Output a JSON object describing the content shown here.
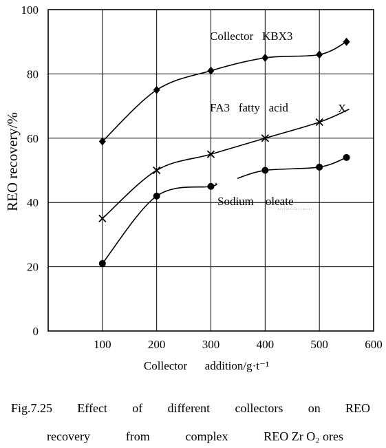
{
  "chart_data": {
    "type": "line",
    "xlabel": "Collector      addition/g·t⁻¹",
    "ylabel": "REO recovery/%",
    "xlim": [
      0,
      600
    ],
    "ylim": [
      0,
      100
    ],
    "x_ticks": [
      "100",
      "200",
      "300",
      "400",
      "500",
      "600"
    ],
    "y_ticks": [
      "0",
      "20",
      "40",
      "60",
      "80",
      "100"
    ],
    "grid": true,
    "series": [
      {
        "name": "Collector   KBX3",
        "marker": "diamond",
        "x": [
          100,
          200,
          300,
          400,
          500,
          550
        ],
        "y": [
          59,
          75,
          81,
          85,
          86,
          90
        ]
      },
      {
        "name": "FA3   fatty   acid",
        "marker": "x",
        "x": [
          100,
          200,
          300,
          400,
          500
        ],
        "y": [
          35,
          50,
          55,
          60,
          65
        ]
      },
      {
        "name": "Sodium    oleate",
        "marker": "circle",
        "x": [
          100,
          200,
          300,
          400,
          500,
          550
        ],
        "y": [
          21,
          42,
          45,
          50,
          51,
          54
        ]
      }
    ],
    "annotations": [
      {
        "text": "X"
      }
    ]
  },
  "caption": {
    "line1": [
      "Fig.7.25",
      "Effect",
      "of",
      "different",
      "collectors",
      "on",
      "REO"
    ],
    "line2": [
      "recovery",
      "from",
      "complex",
      "REO Zr O₂ ores"
    ]
  }
}
